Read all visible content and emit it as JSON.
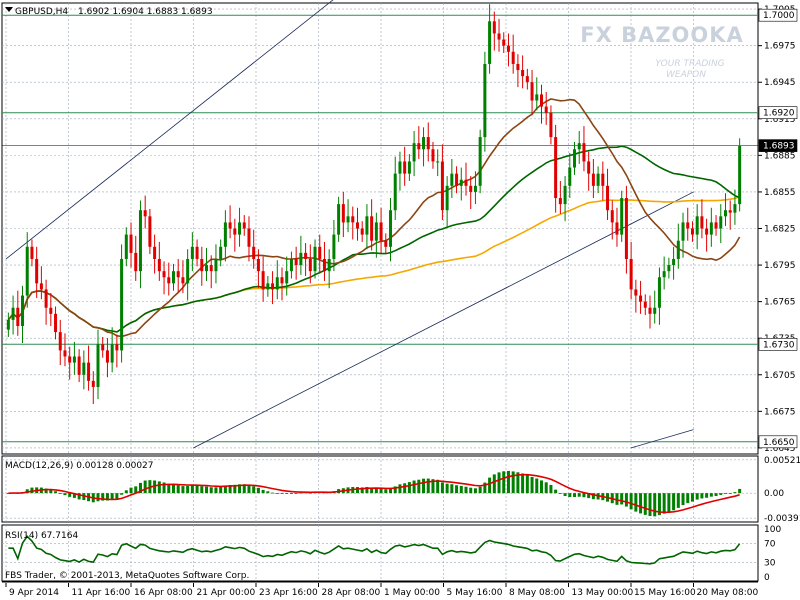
{
  "header": {
    "symbol": "GBPUSD,H4",
    "ohlc": "1.6902 1.6904 1.6883 1.6893"
  },
  "watermark": {
    "brand": "FX BAZOOKA",
    "tagline_1": "YOUR TRADING",
    "tagline_2": "WEAPON"
  },
  "footer": {
    "copyright": "FBS Trader, © 2001-2013, MetaQuotes Software Corp."
  },
  "colors": {
    "bull": "#008000",
    "bear": "#e00000",
    "ma_brown": "#8b4513",
    "ma_green": "#006400",
    "ma_orange": "#f5a800",
    "hline": "#2e8b57",
    "grid": "#9aa8b8",
    "macd_signal": "#e00000"
  },
  "chart_data": [
    {
      "type": "candlestick",
      "name": "price",
      "ylim": [
        1.664,
        1.701
      ],
      "y_ticks": [
        "1.7005",
        "1.6975",
        "1.6945",
        "1.6915",
        "1.6885",
        "1.6855",
        "1.6825",
        "1.6795",
        "1.6765",
        "1.6735",
        "1.6705",
        "1.6675",
        "1.6645"
      ],
      "x_ticks": [
        "9 Apr 2014",
        "11 Apr 16:00",
        "16 Apr 08:00",
        "21 Apr 00:00",
        "23 Apr 16:00",
        "28 Apr 08:00",
        "1 May 00:00",
        "5 May 16:00",
        "8 May 08:00",
        "13 May 00:00",
        "15 May 16:00",
        "20 May 08:00"
      ],
      "price_labels": [
        "1.7000",
        "1.6920",
        "1.6893",
        "1.6730",
        "1.6650"
      ],
      "horizontal_levels": [
        1.7,
        1.692,
        1.673,
        1.665
      ],
      "current_price": 1.6893,
      "trendlines": [
        {
          "from": [
            "9 Apr 2014",
            1.68
          ],
          "to": [
            "8 May 08:00",
            1.7125
          ]
        },
        {
          "from": [
            "21 Apr 00:00",
            1.6645
          ],
          "to": [
            "20 May 08:00",
            1.6855
          ]
        },
        {
          "from": [
            "15 May 16:00",
            1.6645
          ],
          "to": [
            "20 May 08:00",
            1.666
          ]
        }
      ],
      "closes": [
        1.675,
        1.676,
        1.6745,
        1.677,
        1.681,
        1.68,
        1.678,
        1.6775,
        1.676,
        1.6755,
        1.674,
        1.6725,
        1.672,
        1.6715,
        1.672,
        1.6705,
        1.6715,
        1.67,
        1.6695,
        1.673,
        1.6725,
        1.6715,
        1.673,
        1.6725,
        1.68,
        1.682,
        1.6805,
        1.679,
        1.684,
        1.6835,
        1.681,
        1.68,
        1.679,
        1.6785,
        1.678,
        1.679,
        1.6785,
        1.678,
        1.68,
        1.681,
        1.68,
        1.679,
        1.6795,
        1.679,
        1.68,
        1.681,
        1.683,
        1.6825,
        1.682,
        1.683,
        1.6825,
        1.681,
        1.68,
        1.679,
        1.6775,
        1.678,
        1.6775,
        1.6785,
        1.678,
        1.679,
        1.68,
        1.6795,
        1.6805,
        1.68,
        1.679,
        1.681,
        1.68,
        1.679,
        1.68,
        1.682,
        1.6845,
        1.683,
        1.6835,
        1.683,
        1.6825,
        1.682,
        1.6835,
        1.6815,
        1.683,
        1.6815,
        1.681,
        1.684,
        1.687,
        1.688,
        1.687,
        1.688,
        1.6895,
        1.689,
        1.69,
        1.689,
        1.688,
        1.688,
        1.684,
        1.686,
        1.687,
        1.686,
        1.6865,
        1.686,
        1.6855,
        1.686,
        1.69,
        1.696,
        1.6995,
        1.6985,
        1.698,
        1.6975,
        1.697,
        1.696,
        1.6955,
        1.695,
        1.6945,
        1.693,
        1.6935,
        1.6925,
        1.692,
        1.69,
        1.685,
        1.6845,
        1.686,
        1.6875,
        1.689,
        1.6895,
        1.688,
        1.687,
        1.686,
        1.687,
        1.686,
        1.684,
        1.683,
        1.682,
        1.685,
        1.68,
        1.6775,
        1.677,
        1.6765,
        1.676,
        1.6755,
        1.676,
        1.6785,
        1.679,
        1.6795,
        1.68,
        1.6815,
        1.683,
        1.6825,
        1.682,
        1.6835,
        1.6825,
        1.682,
        1.683,
        1.6825,
        1.6835,
        1.684,
        1.6838,
        1.6845,
        1.6893
      ],
      "series": [
        {
          "name": "",
          "role": "ma_brown"
        },
        {
          "name": "",
          "role": "ma_green"
        },
        {
          "name": "",
          "role": "ma_orange"
        }
      ]
    },
    {
      "type": "histogram",
      "name": "macd",
      "label": "MACD(12,26,9) 0.00128 0.00027",
      "ylim": [
        -0.0045,
        0.0058
      ],
      "y_ticks": [
        "0.00521",
        "0.00",
        "-0.00391"
      ]
    },
    {
      "type": "line",
      "name": "rsi",
      "label": "RSI(14) 67.7164",
      "ylim": [
        0,
        100
      ],
      "y_ticks": [
        "100",
        "70",
        "30",
        "0"
      ]
    }
  ]
}
